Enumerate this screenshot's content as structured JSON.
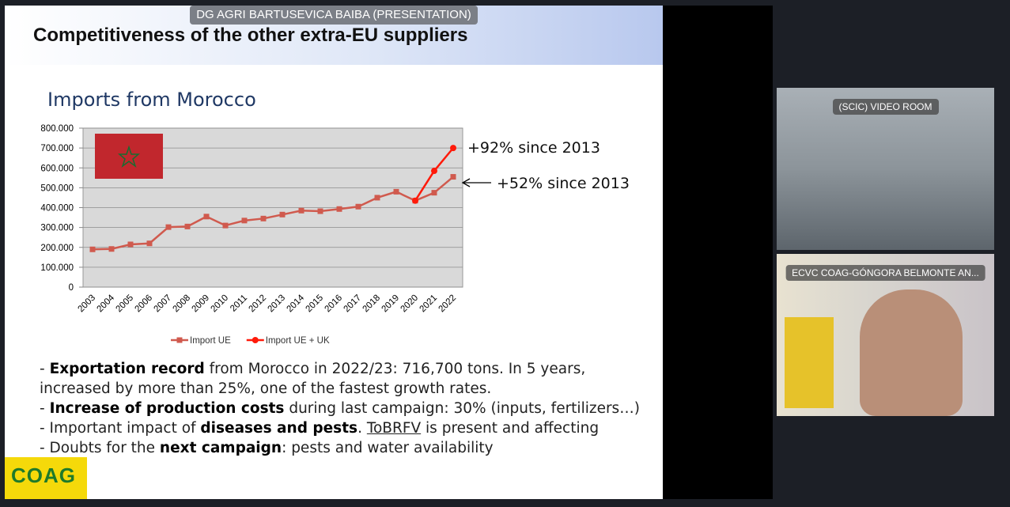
{
  "presenter_label": "DG AGRI BARTUSEVICA BAIBA (PRESENTATION)",
  "slide": {
    "header": "Competitiveness of the other extra-EU suppliers",
    "bullets": [
      [
        {
          "text": "- "
        },
        {
          "text": "Exportation record",
          "style": "bold"
        },
        {
          "text": " from Morocco in 2022/23: 716,700 tons. In 5 years, increased by more than 25%, one of the fastest growth rates."
        }
      ],
      [
        {
          "text": "- "
        },
        {
          "text": "Increase of production costs",
          "style": "bold"
        },
        {
          "text": " during last campaign: 30% (inputs, fertilizers…)"
        }
      ],
      [
        {
          "text": "- Important impact of "
        },
        {
          "text": "diseases and pests",
          "style": "bold"
        },
        {
          "text": ". "
        },
        {
          "text": "ToBRFV",
          "style": "underline"
        },
        {
          "text": " is present and affecting"
        }
      ],
      [
        {
          "text": "- Doubts for the "
        },
        {
          "text": "next campaign",
          "style": "bold"
        },
        {
          "text": ": pests and water availability"
        }
      ]
    ],
    "logo_text": "COAG"
  },
  "chart_data": {
    "type": "line",
    "title": "Imports from Morocco",
    "categories": [
      "2003",
      "2004",
      "2005",
      "2006",
      "2007",
      "2008",
      "2009",
      "2010",
      "2011",
      "2012",
      "2013",
      "2014",
      "2015",
      "2016",
      "2017",
      "2018",
      "2019",
      "2020",
      "2021",
      "2022"
    ],
    "series": [
      {
        "name": "Import UE",
        "color": "#d05a4e",
        "marker": "square",
        "values": [
          190000,
          192000,
          215000,
          220000,
          302000,
          305000,
          355000,
          310000,
          335000,
          345000,
          365000,
          385000,
          382000,
          393000,
          405000,
          450000,
          480000,
          435000,
          475000,
          555000
        ]
      },
      {
        "name": "Import UE + UK",
        "color": "#ff1a0a",
        "marker": "circle",
        "values": [
          null,
          null,
          null,
          null,
          null,
          null,
          null,
          null,
          null,
          null,
          null,
          null,
          null,
          null,
          null,
          null,
          null,
          435000,
          585000,
          700000
        ]
      }
    ],
    "ylim": [
      0,
      800000
    ],
    "yticks": [
      0,
      {
        "value": 100000,
        "label": "100.000"
      },
      {
        "value": 200000,
        "label": "200.000"
      },
      {
        "value": 300000,
        "label": "300.000"
      },
      {
        "value": 400000,
        "label": "400.000"
      },
      {
        "value": 500000,
        "label": "500.000"
      },
      {
        "value": 600000,
        "label": "600.000"
      },
      {
        "value": 700000,
        "label": "700.000"
      },
      {
        "value": 800000,
        "label": "800.000"
      }
    ],
    "grid": true,
    "legend": "bottom",
    "annotations": [
      "+92% since 2013",
      "+52% since 2013"
    ]
  },
  "videos": [
    "(SCIC) VIDEO ROOM",
    "ECVC COAG-GÓNGORA BELMONTE AN..."
  ]
}
